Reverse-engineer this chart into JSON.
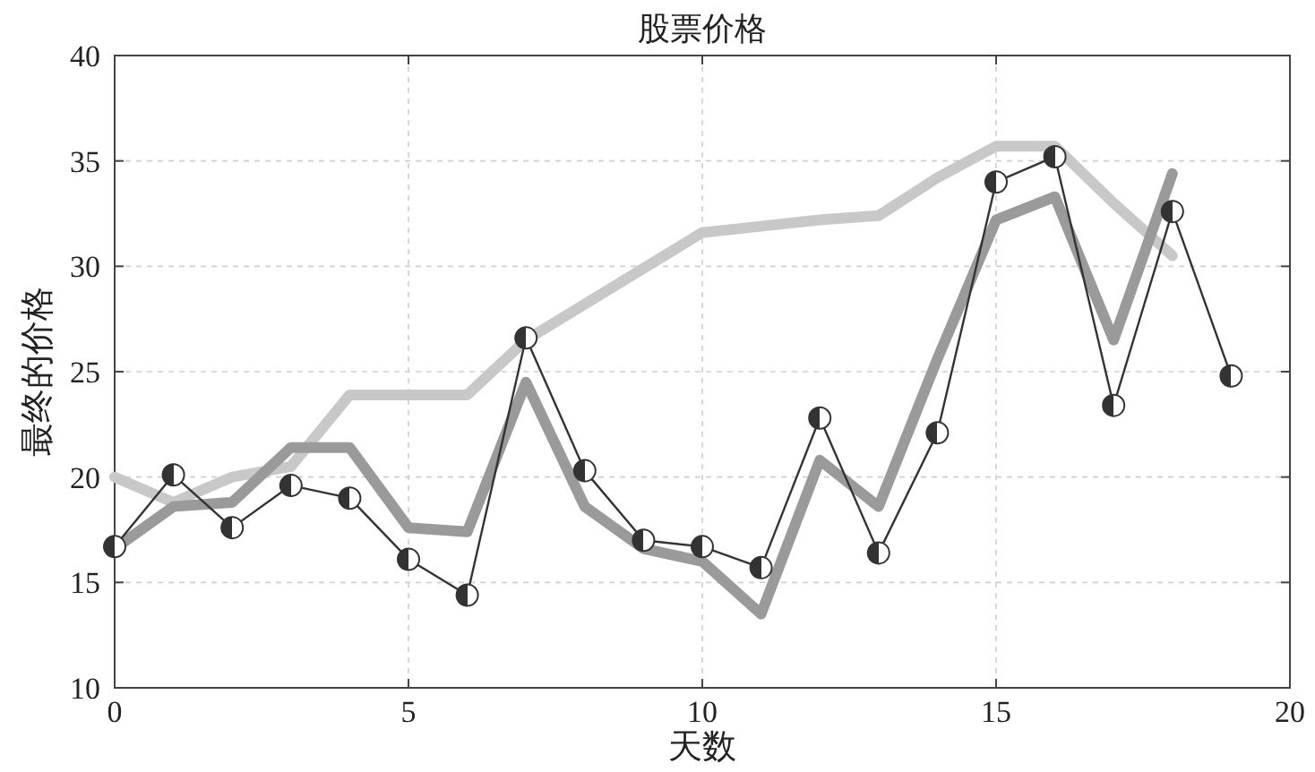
{
  "chart_data": {
    "type": "line",
    "title": "股票价格",
    "xlabel": "天数",
    "ylabel": "最终的价格",
    "xlim": [
      0,
      20
    ],
    "ylim": [
      10,
      40
    ],
    "xticks": [
      0,
      5,
      10,
      15,
      20
    ],
    "yticks": [
      10,
      15,
      20,
      25,
      30,
      35,
      40
    ],
    "grid": true,
    "line_style": "solid",
    "series": [
      {
        "color": "#c8c8c8",
        "marker": "none",
        "x": [
          0,
          1,
          2,
          3,
          4,
          5,
          6,
          7,
          8,
          9,
          10,
          11,
          12,
          13,
          14,
          15,
          16,
          17,
          18
        ],
        "values": [
          20.0,
          18.8,
          20.0,
          20.5,
          23.9,
          23.9,
          23.9,
          26.5,
          28.2,
          29.9,
          31.6,
          31.9,
          32.2,
          32.4,
          34.2,
          35.7,
          35.7,
          33.0,
          30.5
        ]
      },
      {
        "color": "#9a9a9a",
        "marker": "none",
        "x": [
          0,
          1,
          2,
          3,
          4,
          5,
          6,
          7,
          8,
          9,
          10,
          11,
          12,
          13,
          14,
          15,
          16,
          17,
          18
        ],
        "values": [
          16.6,
          18.6,
          18.8,
          21.4,
          21.4,
          17.6,
          17.4,
          24.5,
          18.6,
          16.6,
          16.0,
          13.5,
          20.8,
          18.6,
          25.6,
          32.2,
          33.3,
          26.5,
          34.4
        ]
      },
      {
        "color": "#333333",
        "marker": "circle",
        "x": [
          0,
          1,
          2,
          3,
          4,
          5,
          6,
          7,
          8,
          9,
          10,
          11,
          12,
          13,
          14,
          15,
          16,
          17,
          18,
          19
        ],
        "values": [
          16.7,
          20.1,
          17.6,
          19.6,
          19.0,
          16.1,
          14.4,
          26.6,
          20.3,
          17.0,
          16.7,
          15.7,
          22.8,
          16.4,
          22.1,
          34.0,
          35.2,
          23.4,
          32.6,
          24.8
        ]
      }
    ]
  }
}
